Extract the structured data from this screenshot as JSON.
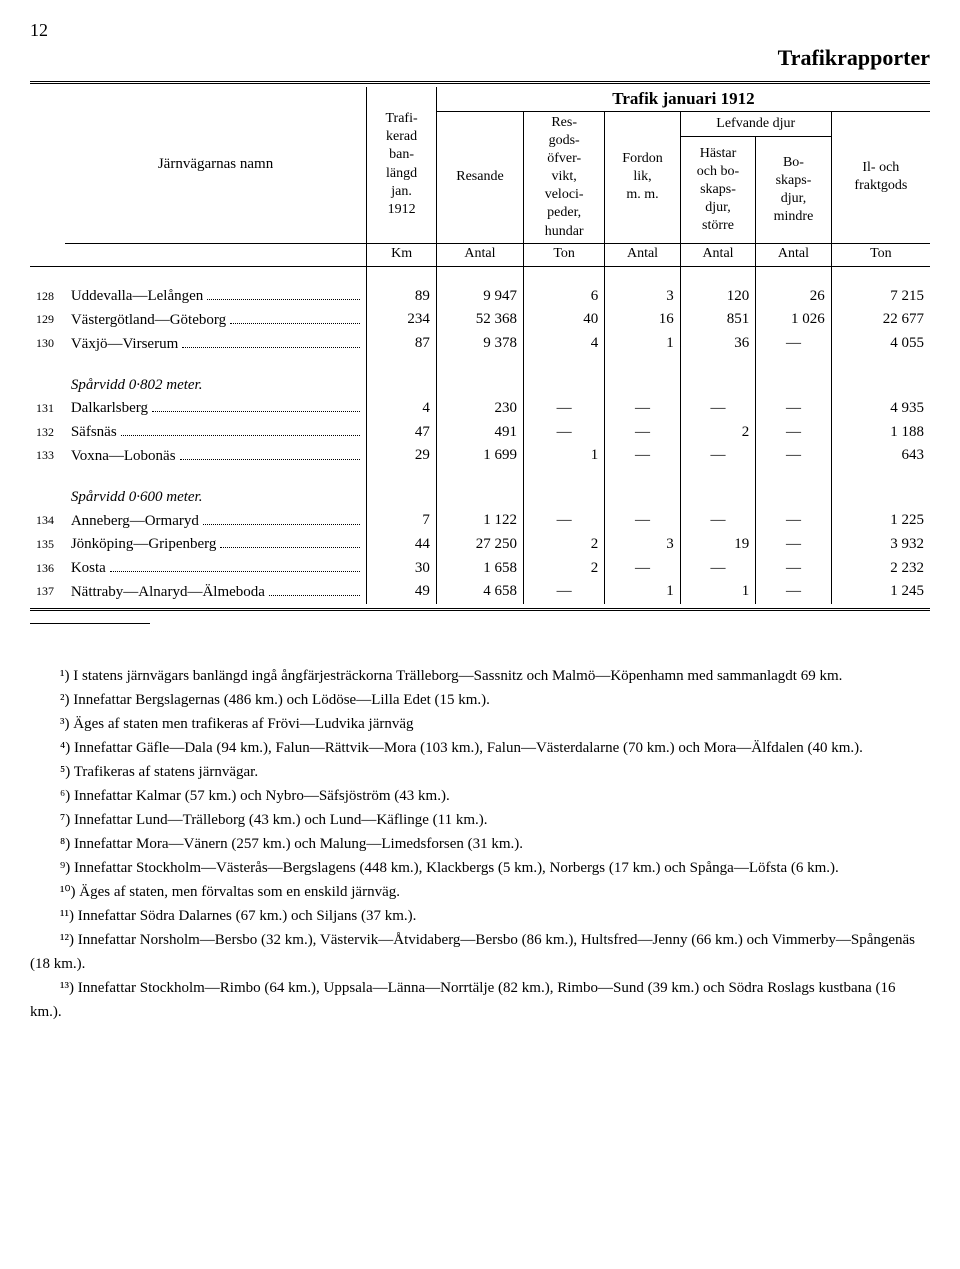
{
  "page_number": "12",
  "main_title": "Trafikrapporter",
  "table": {
    "traffic_title": "Trafik januari 1912",
    "railway_header": "Järnvägarnas namn",
    "col_trafikerad": "Trafi-\nkerad\nban-\nlängd\njan.\n1912",
    "col_resande": "Resande",
    "col_resgods": "Res-\ngods-\nöfver-\nvikt,\nveloci-\npeder,\nhundar",
    "col_fordon": "Fordon\nlik,\nm. m.",
    "col_lefvande": "Lefvande djur",
    "col_hastar": "Hästar\noch bo-\nskaps-\ndjur,\nstörre",
    "col_boskap": "Bo-\nskaps-\ndjur,\nmindre",
    "col_ilgods": "Il- och\nfraktgods",
    "units": {
      "km": "Km",
      "antal": "Antal",
      "ton": "Ton"
    },
    "sections": [
      {
        "rows": [
          {
            "num": "128",
            "name": "Uddevalla—Lelången",
            "km": "89",
            "resande": "9 947",
            "resgods": "6",
            "fordon": "3",
            "hastar": "120",
            "boskap": "26",
            "ilgods": "7 215"
          },
          {
            "num": "129",
            "name": "Västergötland—Göteborg",
            "km": "234",
            "resande": "52 368",
            "resgods": "40",
            "fordon": "16",
            "hastar": "851",
            "boskap": "1 026",
            "ilgods": "22 677"
          },
          {
            "num": "130",
            "name": "Växjö—Virserum",
            "km": "87",
            "resande": "9 378",
            "resgods": "4",
            "fordon": "1",
            "hastar": "36",
            "boskap": "—",
            "ilgods": "4 055"
          }
        ]
      },
      {
        "heading": "Spårvidd 0·802 meter.",
        "rows": [
          {
            "num": "131",
            "name": "Dalkarlsberg",
            "km": "4",
            "resande": "230",
            "resgods": "—",
            "fordon": "—",
            "hastar": "—",
            "boskap": "—",
            "ilgods": "4 935"
          },
          {
            "num": "132",
            "name": "Säfsnäs",
            "km": "47",
            "resande": "491",
            "resgods": "—",
            "fordon": "—",
            "hastar": "2",
            "boskap": "—",
            "ilgods": "1 188"
          },
          {
            "num": "133",
            "name": "Voxna—Lobonäs",
            "km": "29",
            "resande": "1 699",
            "resgods": "1",
            "fordon": "—",
            "hastar": "—",
            "boskap": "—",
            "ilgods": "643"
          }
        ]
      },
      {
        "heading": "Spårvidd 0·600 meter.",
        "rows": [
          {
            "num": "134",
            "name": "Anneberg—Ormaryd",
            "km": "7",
            "resande": "1 122",
            "resgods": "—",
            "fordon": "—",
            "hastar": "—",
            "boskap": "—",
            "ilgods": "1 225"
          },
          {
            "num": "135",
            "name": "Jönköping—Gripenberg",
            "km": "44",
            "resande": "27 250",
            "resgods": "2",
            "fordon": "3",
            "hastar": "19",
            "boskap": "—",
            "ilgods": "3 932"
          },
          {
            "num": "136",
            "name": "Kosta",
            "km": "30",
            "resande": "1 658",
            "resgods": "2",
            "fordon": "—",
            "hastar": "—",
            "boskap": "—",
            "ilgods": "2 232"
          },
          {
            "num": "137",
            "name": "Nättraby—Alnaryd—Älmeboda",
            "km": "49",
            "resande": "4 658",
            "resgods": "—",
            "fordon": "1",
            "hastar": "1",
            "boskap": "—",
            "ilgods": "1 245"
          }
        ]
      }
    ]
  },
  "footnotes": [
    "¹) I statens järnvägars banlängd ingå ångfärjesträckorna Trälleborg—Sassnitz och Malmö—Köpenhamn med sammanlagdt 69 km.",
    "²) Innefattar Bergslagernas (486 km.) och Lödöse—Lilla Edet (15 km.).",
    "³) Äges af staten men trafikeras af Frövi—Ludvika järnväg",
    "⁴) Innefattar Gäfle—Dala (94 km.), Falun—Rättvik—Mora (103 km.), Falun—Västerdalarne (70 km.) och Mora—Älfdalen (40 km.).",
    "⁵) Trafikeras af statens järnvägar.",
    "⁶) Innefattar Kalmar (57 km.) och Nybro—Säfsjöström (43 km.).",
    "⁷) Innefattar Lund—Trälleborg (43 km.) och Lund—Käflinge (11 km.).",
    "⁸) Innefattar Mora—Vänern (257 km.) och Malung—Limedsforsen (31 km.).",
    "⁹) Innefattar Stockholm—Västerås—Bergslagens (448 km.), Klackbergs (5 km.), Norbergs (17 km.) och Spånga—Löfsta (6 km.).",
    "¹⁰) Äges af staten, men förvaltas som en enskild järnväg.",
    "¹¹) Innefattar Södra Dalarnes (67 km.) och Siljans (37 km.).",
    "¹²) Innefattar Norsholm—Bersbo (32 km.), Västervik—Åtvidaberg—Bersbo (86 km.), Hultsfred—Jenny (66 km.) och Vimmerby—Spångenäs (18 km.).",
    "¹³) Innefattar Stockholm—Rimbo (64 km.), Uppsala—Länna—Norrtälje (82 km.), Rimbo—Sund (39 km.) och Södra Roslags kustbana (16 km.)."
  ]
}
